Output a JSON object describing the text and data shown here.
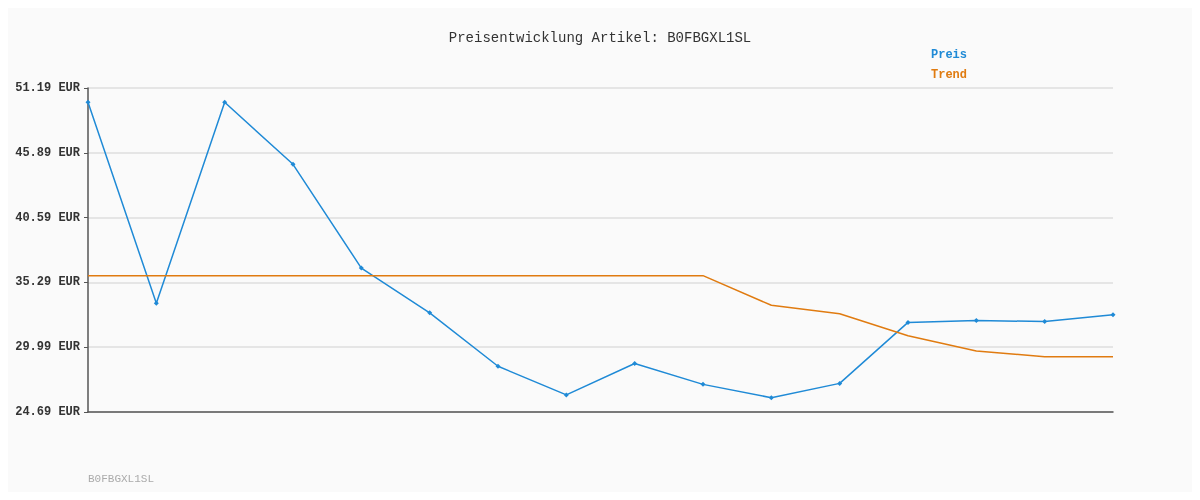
{
  "chart_data": {
    "type": "line",
    "title": "Preisentwicklung Artikel: B0FBGXL1SL",
    "categories": [
      null,
      null,
      null,
      null,
      null,
      null,
      null,
      null,
      null,
      null,
      null,
      null,
      null,
      null,
      null,
      null
    ],
    "series": [
      {
        "name": "Preis",
        "color": "#1f8ad6",
        "marker": "diamond",
        "values": [
          50.02,
          33.58,
          50.02,
          44.95,
          36.46,
          32.8,
          28.43,
          26.09,
          28.66,
          26.95,
          25.86,
          27.03,
          32.02,
          32.17,
          32.09,
          32.64
        ]
      },
      {
        "name": "Trend",
        "color": "#e07b10",
        "marker": "none",
        "values": [
          35.84,
          35.84,
          35.84,
          35.84,
          35.84,
          35.84,
          35.84,
          35.84,
          35.84,
          35.84,
          33.42,
          32.72,
          30.92,
          29.68,
          29.21,
          29.21
        ]
      }
    ],
    "ylim": [
      24.69,
      51.19
    ],
    "yticks": [
      {
        "value": 24.69,
        "label": "24.69 EUR"
      },
      {
        "value": 29.99,
        "label": "29.99 EUR"
      },
      {
        "value": 35.29,
        "label": "35.29 EUR"
      },
      {
        "value": 40.59,
        "label": "40.59 EUR"
      },
      {
        "value": 45.89,
        "label": "45.89 EUR"
      },
      {
        "value": 51.19,
        "label": "51.19 EUR"
      }
    ],
    "grid": "y",
    "legend": "top right",
    "tick_labels": "y",
    "annotations": [
      "B0FBGXL1SL"
    ]
  }
}
